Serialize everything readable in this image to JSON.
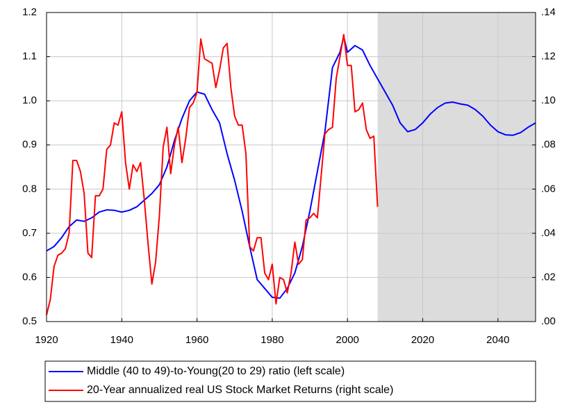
{
  "chart_data": {
    "type": "line",
    "xlim": [
      1920,
      2050
    ],
    "xticks": [
      1920,
      1940,
      1960,
      1980,
      2000,
      2020,
      2040
    ],
    "ylim": [
      0.5,
      1.2
    ],
    "yticks": [
      0.5,
      0.6,
      0.7,
      0.8,
      0.9,
      {
        "value": 1,
        "label": "1.0"
      },
      1.1,
      1.2
    ],
    "y2lim": [
      0,
      0.14
    ],
    "y2ticks": [
      {
        "value": 0,
        "label": ".00"
      },
      {
        "value": 0.02,
        "label": ".02"
      },
      {
        "value": 0.04,
        "label": ".04"
      },
      {
        "value": 0.06,
        "label": ".06"
      },
      {
        "value": 0.08,
        "label": ".08"
      },
      {
        "value": 0.1,
        "label": ".10"
      },
      {
        "value": 0.12,
        "label": ".12"
      },
      {
        "value": 0.14,
        "label": ".14"
      }
    ],
    "grid": true,
    "shaded_x": [
      2008,
      2050
    ],
    "shade_color": "#dcdcdc",
    "series": [
      {
        "name": "Middle (40 to 49)-to-Young(20 to 29) ratio (left scale)",
        "color": "#0000ff",
        "axis": "y",
        "x": [
          1920,
          1922,
          1924,
          1926,
          1928,
          1930,
          1932,
          1934,
          1936,
          1938,
          1940,
          1942,
          1944,
          1946,
          1948,
          1950,
          1952,
          1954,
          1956,
          1958,
          1960,
          1962,
          1964,
          1966,
          1968,
          1970,
          1972,
          1974,
          1976,
          1978,
          1980,
          1982,
          1984,
          1986,
          1988,
          1990,
          1992,
          1994,
          1996,
          1998,
          1999,
          2000,
          2002,
          2004,
          2006,
          2008,
          2010,
          2012,
          2014,
          2016,
          2018,
          2020,
          2022,
          2024,
          2026,
          2028,
          2030,
          2032,
          2034,
          2036,
          2038,
          2040,
          2042,
          2044,
          2046,
          2048,
          2050
        ],
        "values": [
          0.66,
          0.67,
          0.69,
          0.715,
          0.73,
          0.727,
          0.735,
          0.748,
          0.753,
          0.752,
          0.748,
          0.752,
          0.76,
          0.775,
          0.79,
          0.81,
          0.85,
          0.91,
          0.96,
          1.0,
          1.02,
          1.015,
          0.98,
          0.95,
          0.88,
          0.82,
          0.75,
          0.67,
          0.595,
          0.575,
          0.555,
          0.553,
          0.575,
          0.61,
          0.67,
          0.75,
          0.84,
          0.93,
          1.075,
          1.11,
          1.145,
          1.11,
          1.125,
          1.115,
          1.08,
          1.05,
          1.02,
          0.99,
          0.95,
          0.93,
          0.935,
          0.95,
          0.97,
          0.985,
          0.995,
          0.997,
          0.993,
          0.99,
          0.98,
          0.965,
          0.945,
          0.93,
          0.923,
          0.922,
          0.928,
          0.94,
          0.95
        ]
      },
      {
        "name": "20-Year annualized real US Stock Market Returns (right scale)",
        "color": "#ff0000",
        "axis": "y2",
        "x": [
          1920,
          1921,
          1922,
          1923,
          1924,
          1925,
          1926,
          1927,
          1928,
          1929,
          1930,
          1931,
          1932,
          1933,
          1934,
          1935,
          1936,
          1937,
          1938,
          1939,
          1940,
          1941,
          1942,
          1943,
          1944,
          1945,
          1946,
          1947,
          1948,
          1949,
          1950,
          1951,
          1952,
          1953,
          1954,
          1955,
          1956,
          1957,
          1958,
          1959,
          1960,
          1961,
          1962,
          1963,
          1964,
          1965,
          1966,
          1967,
          1968,
          1969,
          1970,
          1971,
          1972,
          1973,
          1974,
          1975,
          1976,
          1977,
          1978,
          1979,
          1980,
          1981,
          1982,
          1983,
          1984,
          1985,
          1986,
          1987,
          1988,
          1989,
          1990,
          1991,
          1992,
          1993,
          1994,
          1995,
          1996,
          1997,
          1998,
          1999,
          2000,
          2001,
          2002,
          2003,
          2004,
          2005,
          2006,
          2007,
          2008
        ],
        "values": [
          0.003,
          0.01,
          0.025,
          0.03,
          0.031,
          0.033,
          0.04,
          0.073,
          0.073,
          0.068,
          0.058,
          0.031,
          0.029,
          0.057,
          0.057,
          0.06,
          0.078,
          0.08,
          0.09,
          0.089,
          0.095,
          0.072,
          0.06,
          0.071,
          0.068,
          0.072,
          0.055,
          0.035,
          0.017,
          0.027,
          0.048,
          0.079,
          0.088,
          0.067,
          0.08,
          0.088,
          0.072,
          0.083,
          0.097,
          0.099,
          0.104,
          0.128,
          0.119,
          0.118,
          0.117,
          0.106,
          0.114,
          0.124,
          0.126,
          0.106,
          0.093,
          0.089,
          0.089,
          0.076,
          0.034,
          0.032,
          0.038,
          0.038,
          0.022,
          0.019,
          0.026,
          0.008,
          0.02,
          0.019,
          0.013,
          0.022,
          0.036,
          0.026,
          0.028,
          0.046,
          0.047,
          0.049,
          0.047,
          0.066,
          0.085,
          0.087,
          0.088,
          0.11,
          0.12,
          0.13,
          0.116,
          0.116,
          0.095,
          0.096,
          0.099,
          0.087,
          0.083,
          0.084,
          0.052
        ]
      }
    ]
  }
}
